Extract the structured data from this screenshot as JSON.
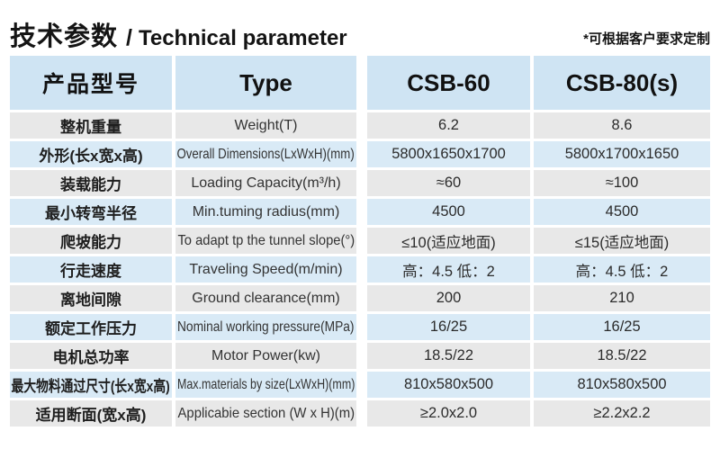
{
  "header": {
    "title_zh": "技术参数",
    "title_sep": "/",
    "title_en": "Technical parameter",
    "note": "*可根据客户要求定制"
  },
  "table": {
    "columns": [
      "产品型号",
      "Type",
      "CSB-60",
      "CSB-80(s)"
    ],
    "rows": [
      {
        "name_zh": "整机重量",
        "name_en": "Weight(T)",
        "csb60": "6.2",
        "csb80": "8.6"
      },
      {
        "name_zh": "外形(长x宽x高)",
        "name_en": "Overall Dimensions(LxWxH)(mm)",
        "csb60": "5800x1650x1700",
        "csb80": "5800x1700x1650"
      },
      {
        "name_zh": "装载能力",
        "name_en": "Loading Capacity(m³/h)",
        "csb60": "≈60",
        "csb80": "≈100"
      },
      {
        "name_zh": "最小转弯半径",
        "name_en": "Min.tuming radius(mm)",
        "csb60": "4500",
        "csb80": "4500"
      },
      {
        "name_zh": "爬坡能力",
        "name_en": "To adapt tp the tunnel slope(°)",
        "csb60": "≤10(适应地面)",
        "csb80": "≤15(适应地面)"
      },
      {
        "name_zh": "行走速度",
        "name_en": "Traveling Speed(m/min)",
        "csb60": "高：4.5 低：2",
        "csb80": "高：4.5 低：2"
      },
      {
        "name_zh": "离地间隙",
        "name_en": "Ground clearance(mm)",
        "csb60": "200",
        "csb80": "210"
      },
      {
        "name_zh": "额定工作压力",
        "name_en": "Nominal working pressure(MPa)",
        "csb60": "16/25",
        "csb80": "16/25"
      },
      {
        "name_zh": "电机总功率",
        "name_en": "Motor Power(kw)",
        "csb60": "18.5/22",
        "csb80": "18.5/22"
      },
      {
        "name_zh": "最大物料通过尺寸(长x宽x高)",
        "name_en": "Max.materials by size(LxWxH)(mm)",
        "csb60": "810x580x500",
        "csb80": "810x580x500"
      },
      {
        "name_zh": "适用断面(宽x高)",
        "name_en": "Applicabie section (W x H)(m)",
        "csb60": "≥2.0x2.0",
        "csb80": "≥2.2x2.2"
      }
    ]
  },
  "colors": {
    "header_bg": "#cfe4f3",
    "row_blue": "#d9eaf6",
    "row_gray": "#e8e8e8",
    "text": "#1e1e1e"
  }
}
